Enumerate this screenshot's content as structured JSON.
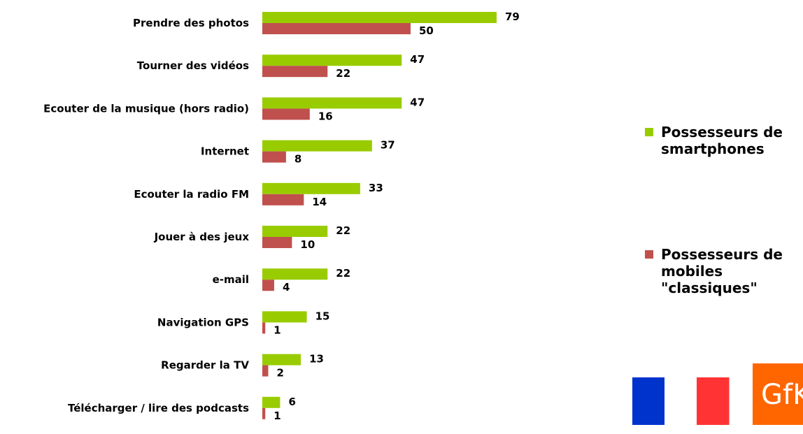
{
  "chart_data": {
    "type": "bar",
    "orientation": "horizontal",
    "categories": [
      "Prendre des photos",
      "Tourner des vidéos",
      "Ecouter de la musique (hors radio)",
      "Internet",
      "Ecouter la radio FM",
      "Jouer à des jeux",
      "e-mail",
      "Navigation GPS",
      "Regarder la TV",
      "Télécharger / lire des podcasts"
    ],
    "series": [
      {
        "name": "Possesseurs de smartphones",
        "legend_lines": [
          "Possesseurs de",
          "smartphones"
        ],
        "color": "#99cc00",
        "values": [
          79,
          47,
          47,
          37,
          33,
          22,
          22,
          15,
          13,
          6
        ]
      },
      {
        "name": "Possesseurs de mobiles \"classiques\"",
        "legend_lines": [
          "Possesseurs de",
          "mobiles",
          "\"classiques\""
        ],
        "color": "#c0504d",
        "values": [
          50,
          22,
          16,
          8,
          14,
          10,
          4,
          1,
          2,
          1
        ]
      }
    ],
    "xlim": [
      0,
      100
    ],
    "grid": false,
    "legend_position": "right"
  },
  "logo": {
    "text": "GfK",
    "color": "#ff6600",
    "flag_colors": [
      "#0033cc",
      "#ffffff",
      "#ff3333"
    ]
  }
}
